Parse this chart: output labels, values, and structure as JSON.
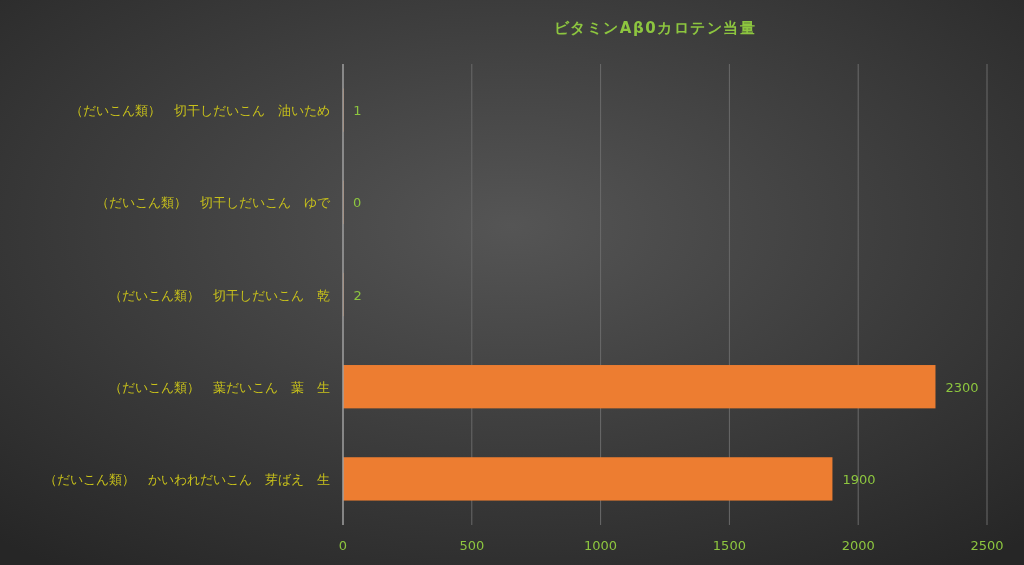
{
  "chart_data": {
    "type": "bar",
    "orientation": "horizontal",
    "title": "ビタミンAβ0カロテン当量",
    "categories": [
      "（だいこん類）　切干しだいこん　油いため",
      "（だいこん類）　切干しだいこん　ゆで",
      "（だいこん類）　切干しだいこん　乾",
      "（だいこん類）　葉だいこん　葉　生",
      "（だいこん類）　かいわれだいこん　芽ばえ　生"
    ],
    "values": [
      1,
      0,
      2,
      2300,
      1900
    ],
    "color": "#ed7d31",
    "xlim": [
      0,
      2500
    ],
    "xticks": [
      0,
      500,
      1000,
      1500,
      2000,
      2500
    ],
    "grid": "x",
    "data_labels": true
  }
}
